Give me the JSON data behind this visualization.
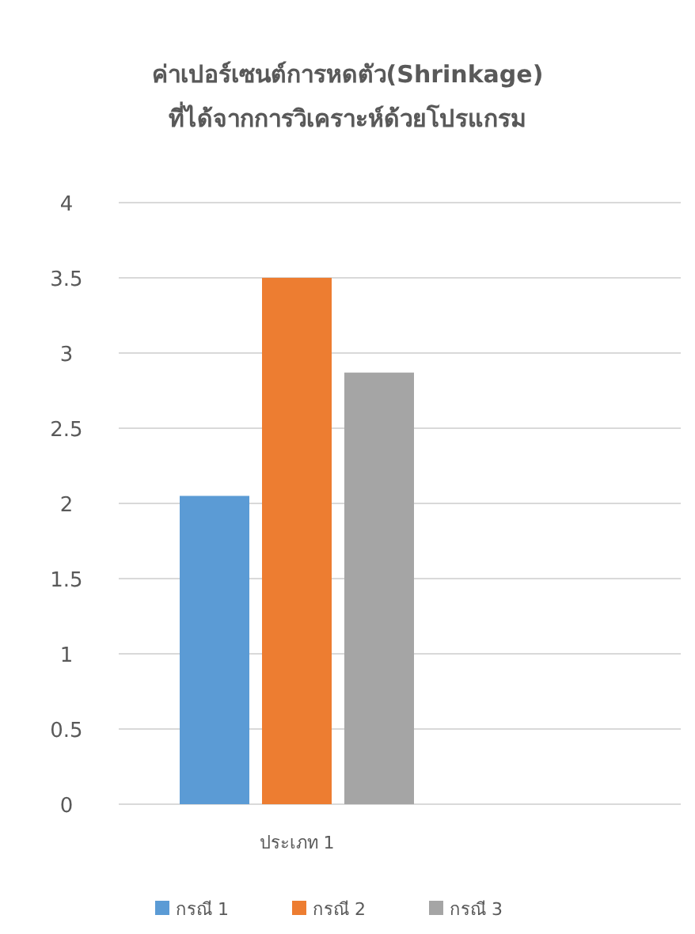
{
  "chart_data": {
    "type": "bar",
    "title": "ค่าเปอร์เซนต์การหดตัว(Shrinkage)",
    "subtitle": "ที่ได้จากการวิเคราะห์ด้วยโปรแกรม",
    "categories": [
      "ประเภท 1"
    ],
    "series": [
      {
        "name": "กรณี 1",
        "color": "#5b9bd5",
        "values": [
          2.05
        ]
      },
      {
        "name": "กรณี 2",
        "color": "#ed7d31",
        "values": [
          3.5
        ]
      },
      {
        "name": "กรณี 3",
        "color": "#a5a5a5",
        "values": [
          2.87
        ]
      }
    ],
    "ylim": [
      0,
      4
    ],
    "yticks": [
      0,
      0.5,
      1,
      1.5,
      2,
      2.5,
      3,
      3.5,
      4
    ],
    "grid": "y",
    "legend": "bottom"
  }
}
